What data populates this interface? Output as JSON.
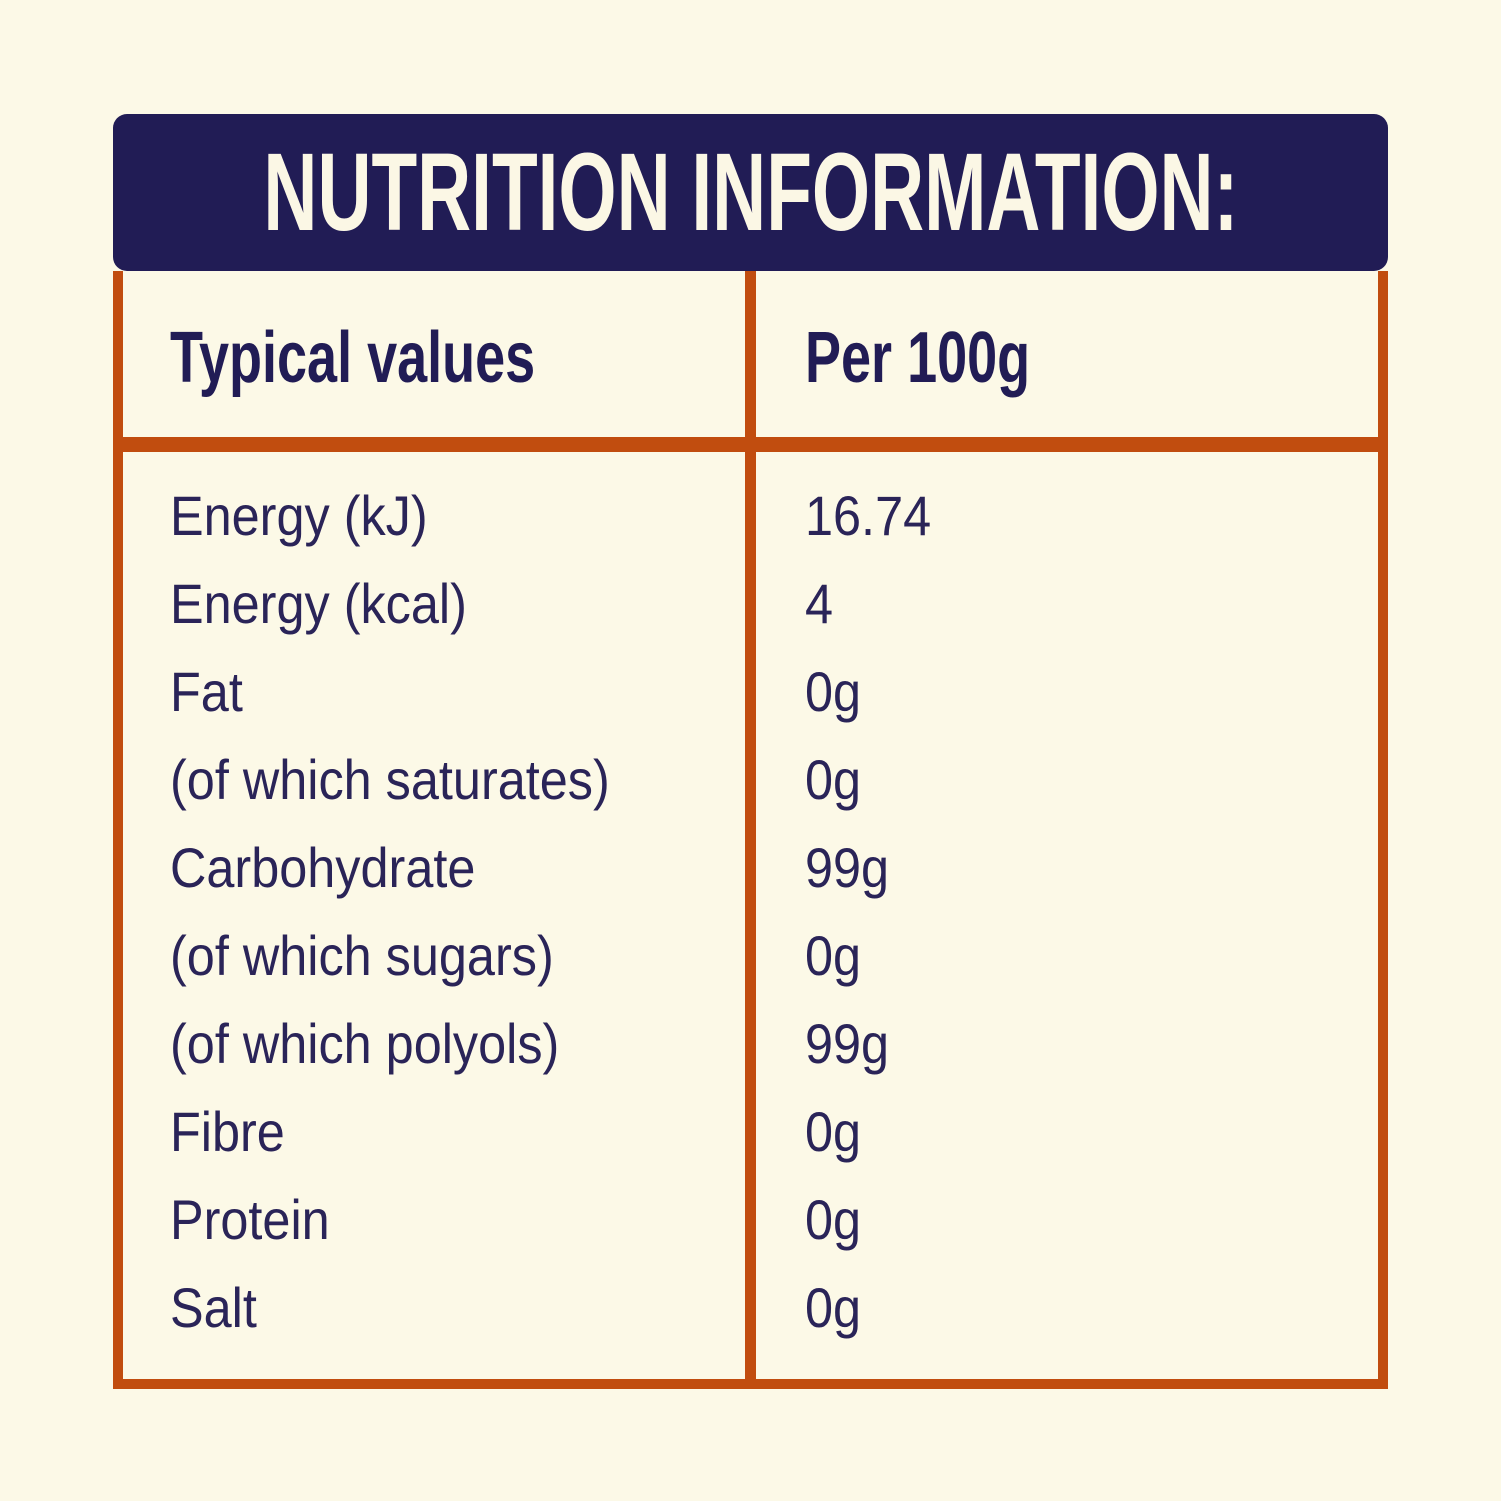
{
  "title": "NUTRITION INFORMATION:",
  "table": {
    "columns": [
      "Typical values",
      "Per 100g"
    ],
    "rows": [
      {
        "label": "Energy (kJ)",
        "value": "16.74"
      },
      {
        "label": "Energy (kcal)",
        "value": "4"
      },
      {
        "label": "Fat",
        "value": "0g"
      },
      {
        "label": "(of which saturates)",
        "value": "0g"
      },
      {
        "label": "Carbohydrate",
        "value": "99g"
      },
      {
        "label": "(of which sugars)",
        "value": "0g"
      },
      {
        "label": "(of which polyols)",
        "value": "99g"
      },
      {
        "label": "Fibre",
        "value": "0g"
      },
      {
        "label": "Protein",
        "value": "0g"
      },
      {
        "label": "Salt",
        "value": "0g"
      }
    ]
  },
  "colors": {
    "background_cream": "#fcf9e7",
    "banner_navy": "#211c55",
    "border_orange": "#c14d0f",
    "text_navy": "#2a2458",
    "title_cream": "#fbf7e5"
  }
}
